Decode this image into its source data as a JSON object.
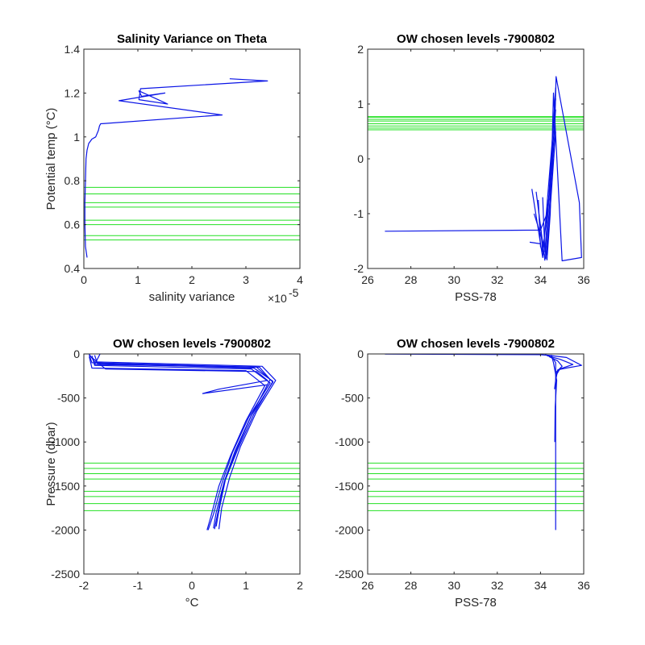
{
  "figure": {
    "id": "7900802"
  },
  "colors": {
    "profile": "#0a14e6",
    "levels": "#22e022",
    "axis": "#262626"
  },
  "chart_data": [
    {
      "type": "line",
      "title": "Salinity Variance on Theta",
      "xlabel": "salinity variance",
      "ylabel": "Potential temp (°C)",
      "xlim": [
        0,
        4e-05
      ],
      "ylim": [
        0.4,
        1.4
      ],
      "x_exponent_label": "×10",
      "x_exponent_power": "-5",
      "x_scale": 1e-05,
      "xticks": [
        0,
        1,
        2,
        3,
        4
      ],
      "xtick_labels": [
        "0",
        "1",
        "2",
        "3",
        "4"
      ],
      "yticks": [
        0.4,
        0.6,
        0.8,
        1,
        1.2,
        1.4
      ],
      "ytick_labels": [
        "0.4",
        "0.6",
        "0.8",
        "1",
        "1.2",
        "1.4"
      ],
      "series": [
        {
          "style": "profile",
          "x": [
            6e-07,
            3e-07,
            2e-07,
            2e-07,
            3e-07,
            4e-07,
            6e-07,
            9e-07,
            1.5e-06,
            2.2e-06,
            2.7e-06,
            2.9e-06,
            3.1e-06,
            2.56e-05,
            6.5e-06,
            1.5e-05,
            1.07e-05,
            1.02e-05,
            1.55e-05,
            1.02e-05,
            1.05e-05,
            3.4e-05,
            2.7e-05
          ],
          "y": [
            0.45,
            0.5,
            0.6,
            0.7,
            0.8,
            0.9,
            0.94,
            0.97,
            0.99,
            1.0,
            1.03,
            1.05,
            1.06,
            1.1,
            1.165,
            1.2,
            1.185,
            1.21,
            1.15,
            1.17,
            1.22,
            1.255,
            1.265
          ]
        }
      ],
      "hlines": [
        0.53,
        0.55,
        0.6,
        0.62,
        0.68,
        0.7,
        0.74,
        0.77
      ]
    },
    {
      "type": "line",
      "title": "OW chosen levels -7900802",
      "xlabel": "PSS-78",
      "ylabel": "",
      "xlim": [
        26,
        36
      ],
      "ylim": [
        -2,
        2
      ],
      "xticks": [
        26,
        28,
        30,
        32,
        34,
        36
      ],
      "xtick_labels": [
        "26",
        "28",
        "30",
        "32",
        "34",
        "36"
      ],
      "yticks": [
        -2,
        -1,
        0,
        1,
        2
      ],
      "ytick_labels": [
        "-2",
        "-1",
        "0",
        "1",
        "2"
      ],
      "series": [
        {
          "style": "profile",
          "x": [
            26.8,
            34.0,
            34.3,
            34.5,
            34.65,
            34.72,
            35.8,
            35.9,
            35.0,
            34.68,
            34.6,
            34.45,
            34.3
          ],
          "y": [
            -1.32,
            -1.3,
            -1.0,
            -0.3,
            0.4,
            1.5,
            -0.8,
            -1.8,
            -1.86,
            0.6,
            1.2,
            -1.0,
            -1.85
          ]
        },
        {
          "style": "profile",
          "x": [
            33.6,
            34.1,
            34.7
          ],
          "y": [
            -0.55,
            -1.8,
            1.1
          ]
        },
        {
          "style": "profile",
          "x": [
            33.8,
            34.2,
            34.7
          ],
          "y": [
            -0.6,
            -1.85,
            1.3
          ]
        },
        {
          "style": "profile",
          "x": [
            33.9,
            34.0,
            34.25,
            34.6
          ],
          "y": [
            -0.75,
            -1.6,
            -1.82,
            0.2
          ]
        },
        {
          "style": "profile",
          "x": [
            33.5,
            34.0
          ],
          "y": [
            -1.52,
            -1.55
          ]
        },
        {
          "style": "profile",
          "x": [
            34.1,
            34.2,
            34.7
          ],
          "y": [
            -0.7,
            -1.7,
            0.9
          ]
        },
        {
          "style": "profile",
          "x": [
            33.7,
            34.3,
            34.7
          ],
          "y": [
            -1.0,
            -1.75,
            0.5
          ]
        },
        {
          "style": "profile",
          "x": [
            34.0,
            34.1,
            34.6
          ],
          "y": [
            -1.2,
            -1.7,
            0.0
          ]
        }
      ],
      "hlines": [
        0.53,
        0.56,
        0.6,
        0.64,
        0.69,
        0.72,
        0.76,
        0.77
      ]
    },
    {
      "type": "line",
      "title": "OW chosen levels -7900802",
      "xlabel": "°C",
      "ylabel": "Pressure (dbar)",
      "xlim": [
        -2,
        2
      ],
      "ylim": [
        -2500,
        0
      ],
      "xticks": [
        -2,
        -1,
        0,
        1,
        2
      ],
      "xtick_labels": [
        "-2",
        "-1",
        "0",
        "1",
        "2"
      ],
      "yticks": [
        -2500,
        -2000,
        -1500,
        -1000,
        -500,
        0
      ],
      "ytick_labels": [
        "-2500",
        "-2000",
        "-1500",
        "-1000",
        "-500",
        "0"
      ],
      "series": [
        {
          "style": "profile",
          "x": [
            -1.9,
            -1.85,
            1.2,
            1.5,
            1.1,
            0.8,
            0.6,
            0.45,
            0.4
          ],
          "y": [
            -10,
            -100,
            -150,
            -320,
            -700,
            -1100,
            -1450,
            -1800,
            -1980
          ]
        },
        {
          "style": "profile",
          "x": [
            -1.85,
            -1.8,
            1.1,
            1.45,
            1.05,
            0.75,
            0.55,
            0.4,
            0.3
          ],
          "y": [
            -20,
            -130,
            -170,
            -330,
            -720,
            -1120,
            -1480,
            -1820,
            -2000
          ]
        },
        {
          "style": "profile",
          "x": [
            -1.9,
            -1.8,
            1.3,
            1.55,
            1.2,
            0.9,
            0.7,
            0.55,
            0.5
          ],
          "y": [
            -5,
            -90,
            -140,
            -300,
            -650,
            -1050,
            -1400,
            -1750,
            -1990
          ]
        },
        {
          "style": "profile",
          "x": [
            -1.8,
            -1.75,
            1.15,
            1.5,
            1.15,
            0.85,
            0.62,
            0.5,
            0.45
          ],
          "y": [
            -15,
            -110,
            -160,
            -310,
            -680,
            -1080,
            -1430,
            -1780,
            -1960
          ]
        },
        {
          "style": "profile",
          "x": [
            -1.9,
            -1.85,
            1.0,
            1.35,
            1.0,
            0.72,
            0.5,
            0.35,
            0.28
          ],
          "y": [
            -30,
            -160,
            -190,
            -360,
            -760,
            -1150,
            -1500,
            -1850,
            -2000
          ]
        },
        {
          "style": "profile",
          "x": [
            -1.7,
            -1.8,
            1.25,
            1.45,
            1.1,
            0.82,
            0.6,
            0.48,
            0.42
          ],
          "y": [
            0,
            -120,
            -150,
            -290,
            -700,
            -1100,
            -1460,
            -1800,
            -1990
          ]
        },
        {
          "style": "profile",
          "x": [
            -1.85,
            -1.6,
            1.2,
            1.4,
            0.5,
            0.2,
            1.4
          ],
          "y": [
            -40,
            -170,
            -200,
            -300,
            -400,
            -450,
            -350
          ]
        }
      ],
      "hlines": [
        -1240,
        -1300,
        -1360,
        -1420,
        -1560,
        -1620,
        -1700,
        -1780
      ]
    },
    {
      "type": "line",
      "title": "OW chosen levels -7900802",
      "xlabel": "PSS-78",
      "ylabel": "",
      "xlim": [
        26,
        36
      ],
      "ylim": [
        -2500,
        0
      ],
      "xticks": [
        26,
        28,
        30,
        32,
        34,
        36
      ],
      "xtick_labels": [
        "26",
        "28",
        "30",
        "32",
        "34",
        "36"
      ],
      "yticks": [
        -2500,
        -2000,
        -1500,
        -1000,
        -500,
        0
      ],
      "ytick_labels": [
        "-2500",
        "-2000",
        "-1500",
        "-1000",
        "-500",
        "0"
      ],
      "series": [
        {
          "style": "profile",
          "x": [
            26.8,
            34.0,
            34.5,
            34.7,
            34.7,
            34.7,
            34.7
          ],
          "y": [
            -2,
            -8,
            -20,
            -100,
            -500,
            -1500,
            -2000
          ]
        },
        {
          "style": "profile",
          "x": [
            34.2,
            35.2,
            35.9,
            35.2,
            34.8,
            34.7
          ],
          "y": [
            -10,
            -40,
            -130,
            -160,
            -180,
            -300
          ]
        },
        {
          "style": "profile",
          "x": [
            34.3,
            34.9,
            35.5,
            34.9,
            34.7
          ],
          "y": [
            -20,
            -60,
            -120,
            -170,
            -250
          ]
        },
        {
          "style": "profile",
          "x": [
            34.4,
            34.8,
            35.0,
            34.75,
            34.65
          ],
          "y": [
            -30,
            -80,
            -140,
            -200,
            -400
          ]
        },
        {
          "style": "profile",
          "x": [
            34.5,
            34.6,
            34.75,
            34.68,
            34.66
          ],
          "y": [
            -10,
            -100,
            -300,
            -600,
            -1000
          ]
        }
      ],
      "hlines": [
        -1240,
        -1300,
        -1360,
        -1420,
        -1560,
        -1620,
        -1700,
        -1780
      ]
    }
  ]
}
